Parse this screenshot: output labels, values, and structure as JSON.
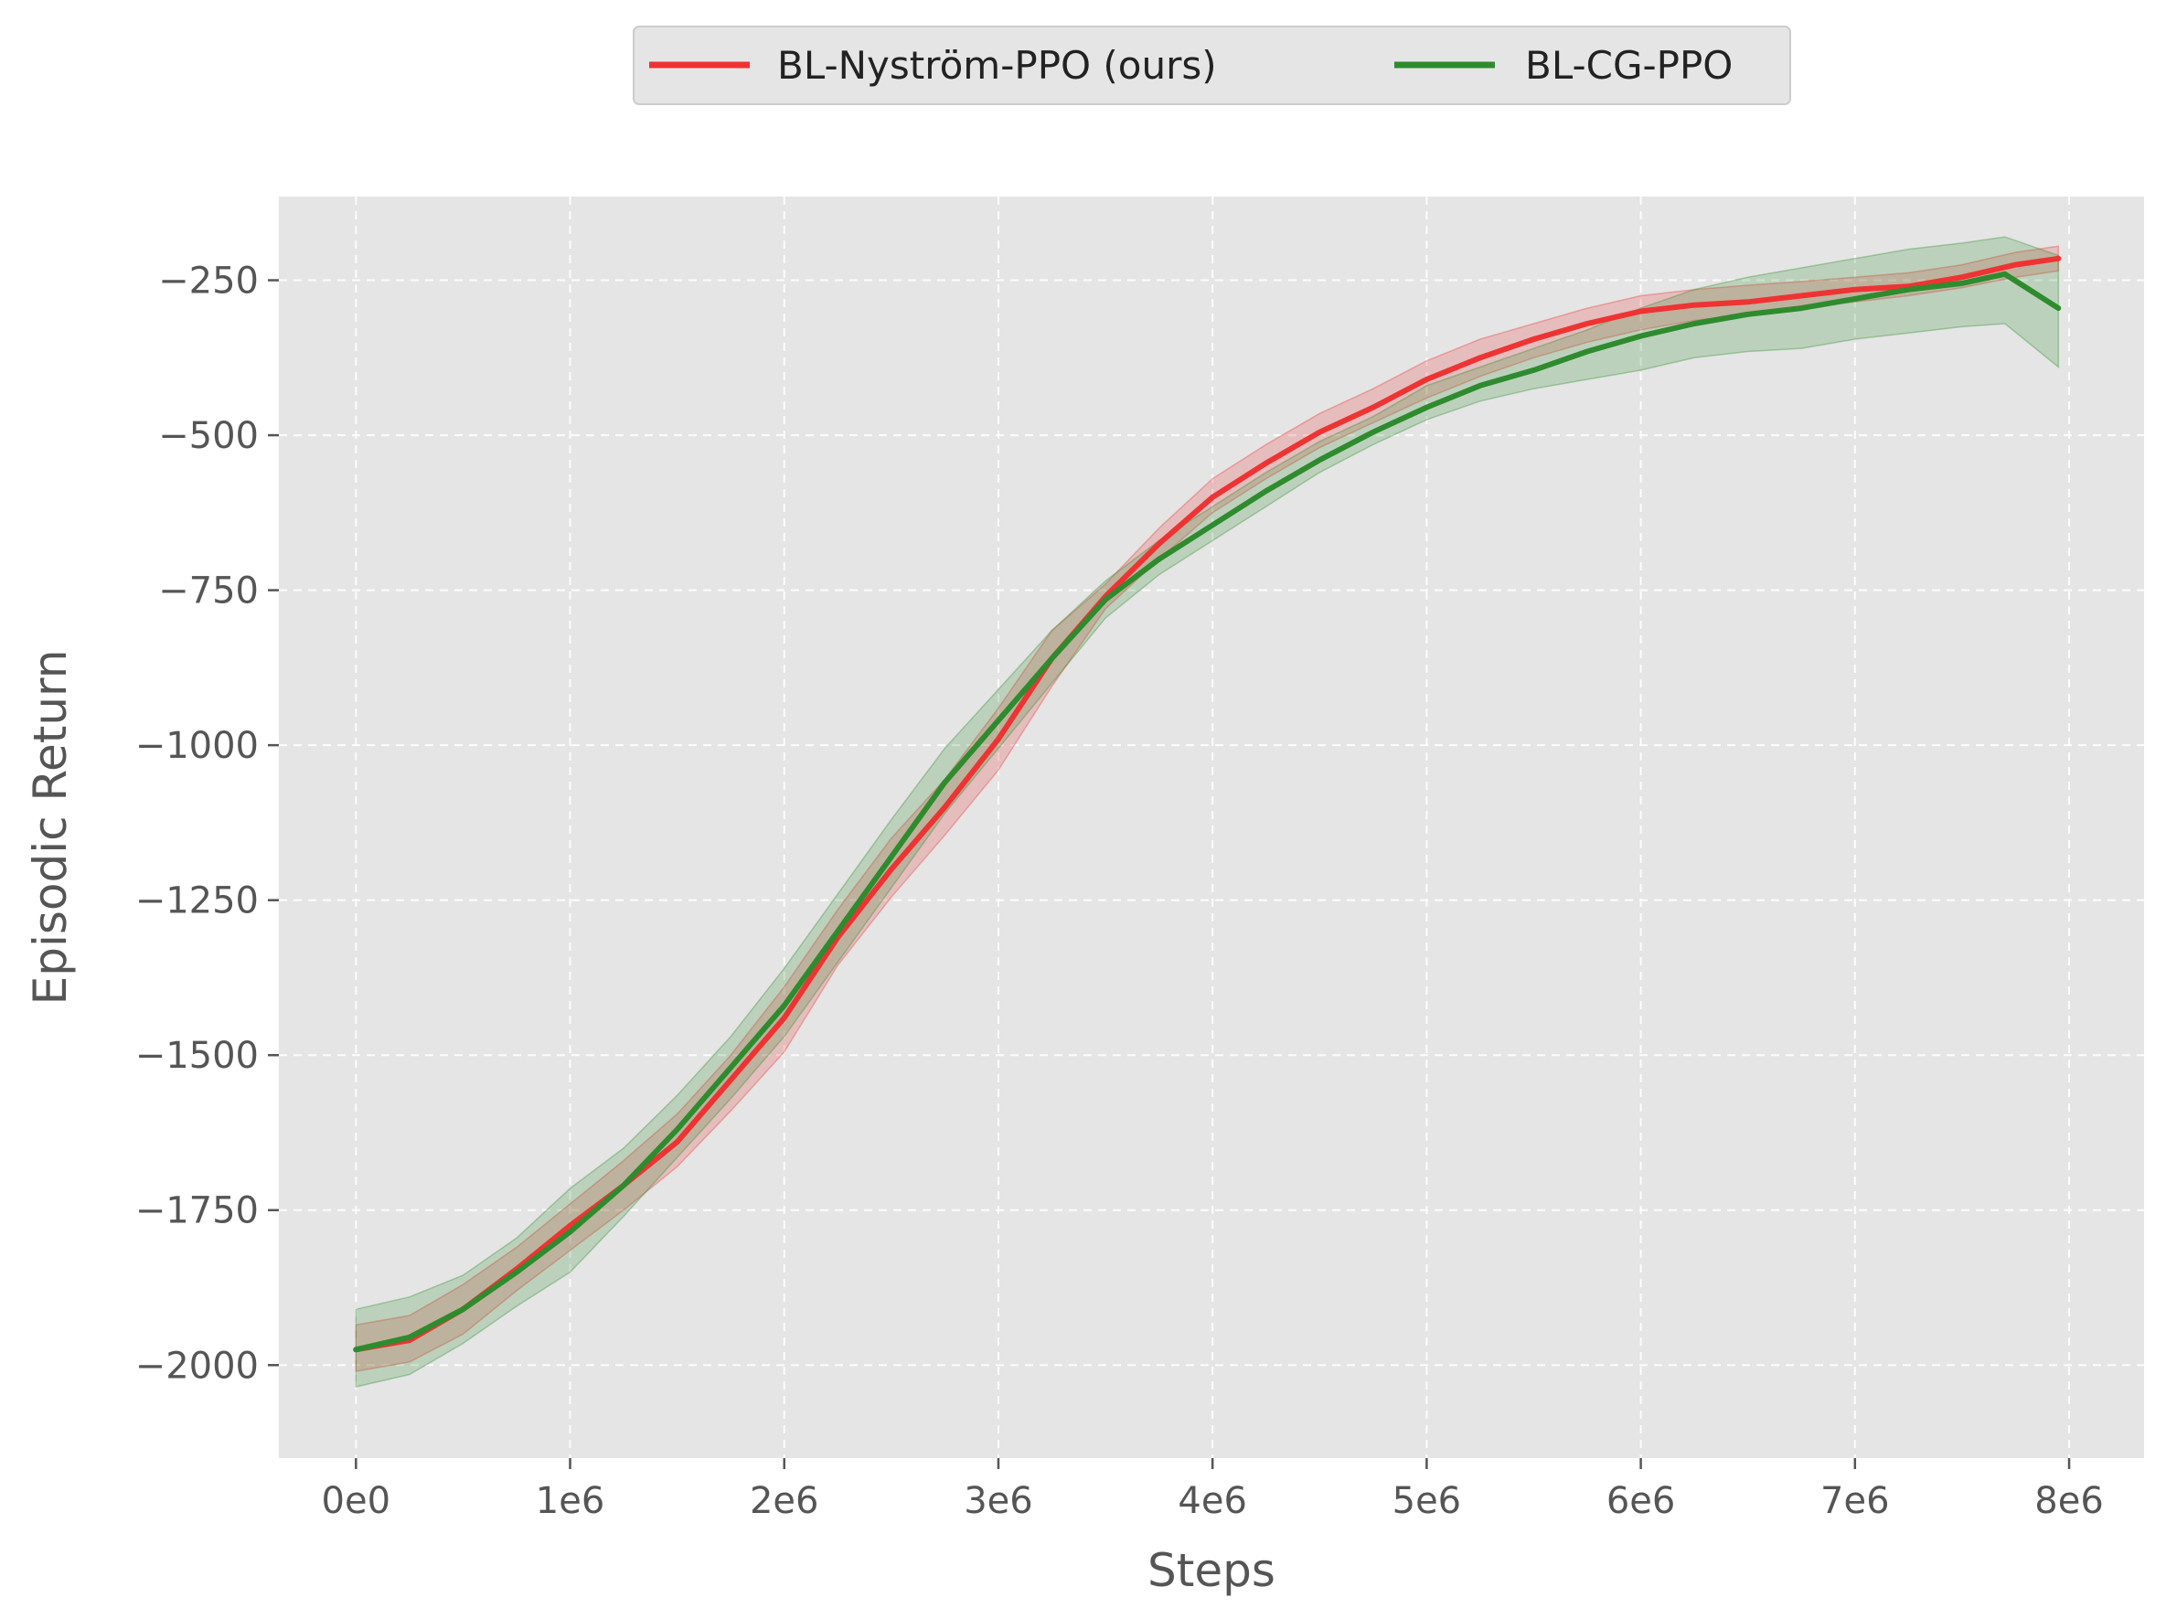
{
  "chart_data": {
    "type": "line",
    "title": "",
    "xlabel": "Steps",
    "ylabel": "Episodic Return",
    "xlim": [
      -360000,
      8350000
    ],
    "ylim": [
      -2150,
      -115
    ],
    "x_ticks": [
      {
        "value": 0,
        "label": "0e0"
      },
      {
        "value": 1000000,
        "label": "1e6"
      },
      {
        "value": 2000000,
        "label": "2e6"
      },
      {
        "value": 3000000,
        "label": "3e6"
      },
      {
        "value": 4000000,
        "label": "4e6"
      },
      {
        "value": 5000000,
        "label": "5e6"
      },
      {
        "value": 6000000,
        "label": "6e6"
      },
      {
        "value": 7000000,
        "label": "7e6"
      },
      {
        "value": 8000000,
        "label": "8e6"
      }
    ],
    "y_ticks": [
      {
        "value": -250,
        "label": "−250"
      },
      {
        "value": -500,
        "label": "−500"
      },
      {
        "value": -750,
        "label": "−750"
      },
      {
        "value": -1000,
        "label": "−1000"
      },
      {
        "value": -1250,
        "label": "−1250"
      },
      {
        "value": -1500,
        "label": "−1500"
      },
      {
        "value": -1750,
        "label": "−1750"
      },
      {
        "value": -2000,
        "label": "−2000"
      }
    ],
    "grid": true,
    "legend_position": "top-center",
    "background_color": "#e5e5e5",
    "series": [
      {
        "name": "BL-Nyström-PPO (ours)",
        "color": "#ee3333",
        "x": [
          0,
          250000,
          500000,
          750000,
          1000000,
          1250000,
          1500000,
          1750000,
          2000000,
          2250000,
          2500000,
          2750000,
          3000000,
          3250000,
          3500000,
          3750000,
          4000000,
          4250000,
          4500000,
          4750000,
          5000000,
          5250000,
          5500000,
          5750000,
          6000000,
          6250000,
          6500000,
          6750000,
          7000000,
          7250000,
          7500000,
          7750000,
          7950000
        ],
        "mean": [
          -1975,
          -1960,
          -1910,
          -1845,
          -1775,
          -1710,
          -1640,
          -1540,
          -1440,
          -1310,
          -1200,
          -1100,
          -990,
          -860,
          -760,
          -675,
          -600,
          -545,
          -495,
          -455,
          -410,
          -375,
          -345,
          -320,
          -300,
          -290,
          -285,
          -275,
          -265,
          -260,
          -245,
          -225,
          -215
        ],
        "lower": [
          -2010,
          -1995,
          -1950,
          -1880,
          -1815,
          -1750,
          -1680,
          -1590,
          -1495,
          -1355,
          -1245,
          -1145,
          -1040,
          -905,
          -780,
          -700,
          -625,
          -570,
          -520,
          -480,
          -440,
          -405,
          -375,
          -350,
          -330,
          -315,
          -305,
          -295,
          -285,
          -275,
          -262,
          -245,
          -235
        ],
        "upper": [
          -1935,
          -1920,
          -1870,
          -1810,
          -1740,
          -1670,
          -1595,
          -1500,
          -1390,
          -1265,
          -1150,
          -1055,
          -940,
          -815,
          -740,
          -650,
          -570,
          -515,
          -465,
          -425,
          -380,
          -345,
          -320,
          -295,
          -275,
          -265,
          -258,
          -252,
          -245,
          -238,
          -225,
          -205,
          -195
        ]
      },
      {
        "name": "BL-CG-PPO",
        "color": "#2e8b2e",
        "x": [
          0,
          250000,
          500000,
          750000,
          1000000,
          1250000,
          1500000,
          1750000,
          2000000,
          2250000,
          2500000,
          2750000,
          3000000,
          3250000,
          3500000,
          3750000,
          4000000,
          4250000,
          4500000,
          4750000,
          5000000,
          5250000,
          5500000,
          5750000,
          6000000,
          6250000,
          6500000,
          6750000,
          7000000,
          7250000,
          7500000,
          7700000,
          7950000
        ],
        "mean": [
          -1975,
          -1955,
          -1910,
          -1850,
          -1785,
          -1710,
          -1620,
          -1520,
          -1420,
          -1300,
          -1180,
          -1060,
          -960,
          -860,
          -765,
          -700,
          -645,
          -590,
          -540,
          -495,
          -455,
          -420,
          -395,
          -365,
          -340,
          -320,
          -305,
          -295,
          -280,
          -265,
          -255,
          -240,
          -295
        ],
        "lower": [
          -2035,
          -2015,
          -1965,
          -1905,
          -1850,
          -1760,
          -1665,
          -1570,
          -1470,
          -1350,
          -1230,
          -1110,
          -1005,
          -900,
          -795,
          -725,
          -670,
          -615,
          -560,
          -515,
          -475,
          -445,
          -425,
          -410,
          -395,
          -375,
          -365,
          -360,
          -345,
          -335,
          -325,
          -320,
          -390
        ],
        "upper": [
          -1910,
          -1890,
          -1855,
          -1795,
          -1715,
          -1650,
          -1565,
          -1470,
          -1360,
          -1240,
          -1120,
          -1005,
          -910,
          -815,
          -735,
          -670,
          -615,
          -560,
          -510,
          -470,
          -420,
          -390,
          -360,
          -330,
          -295,
          -265,
          -245,
          -230,
          -215,
          -200,
          -190,
          -180,
          -210
        ]
      }
    ]
  }
}
